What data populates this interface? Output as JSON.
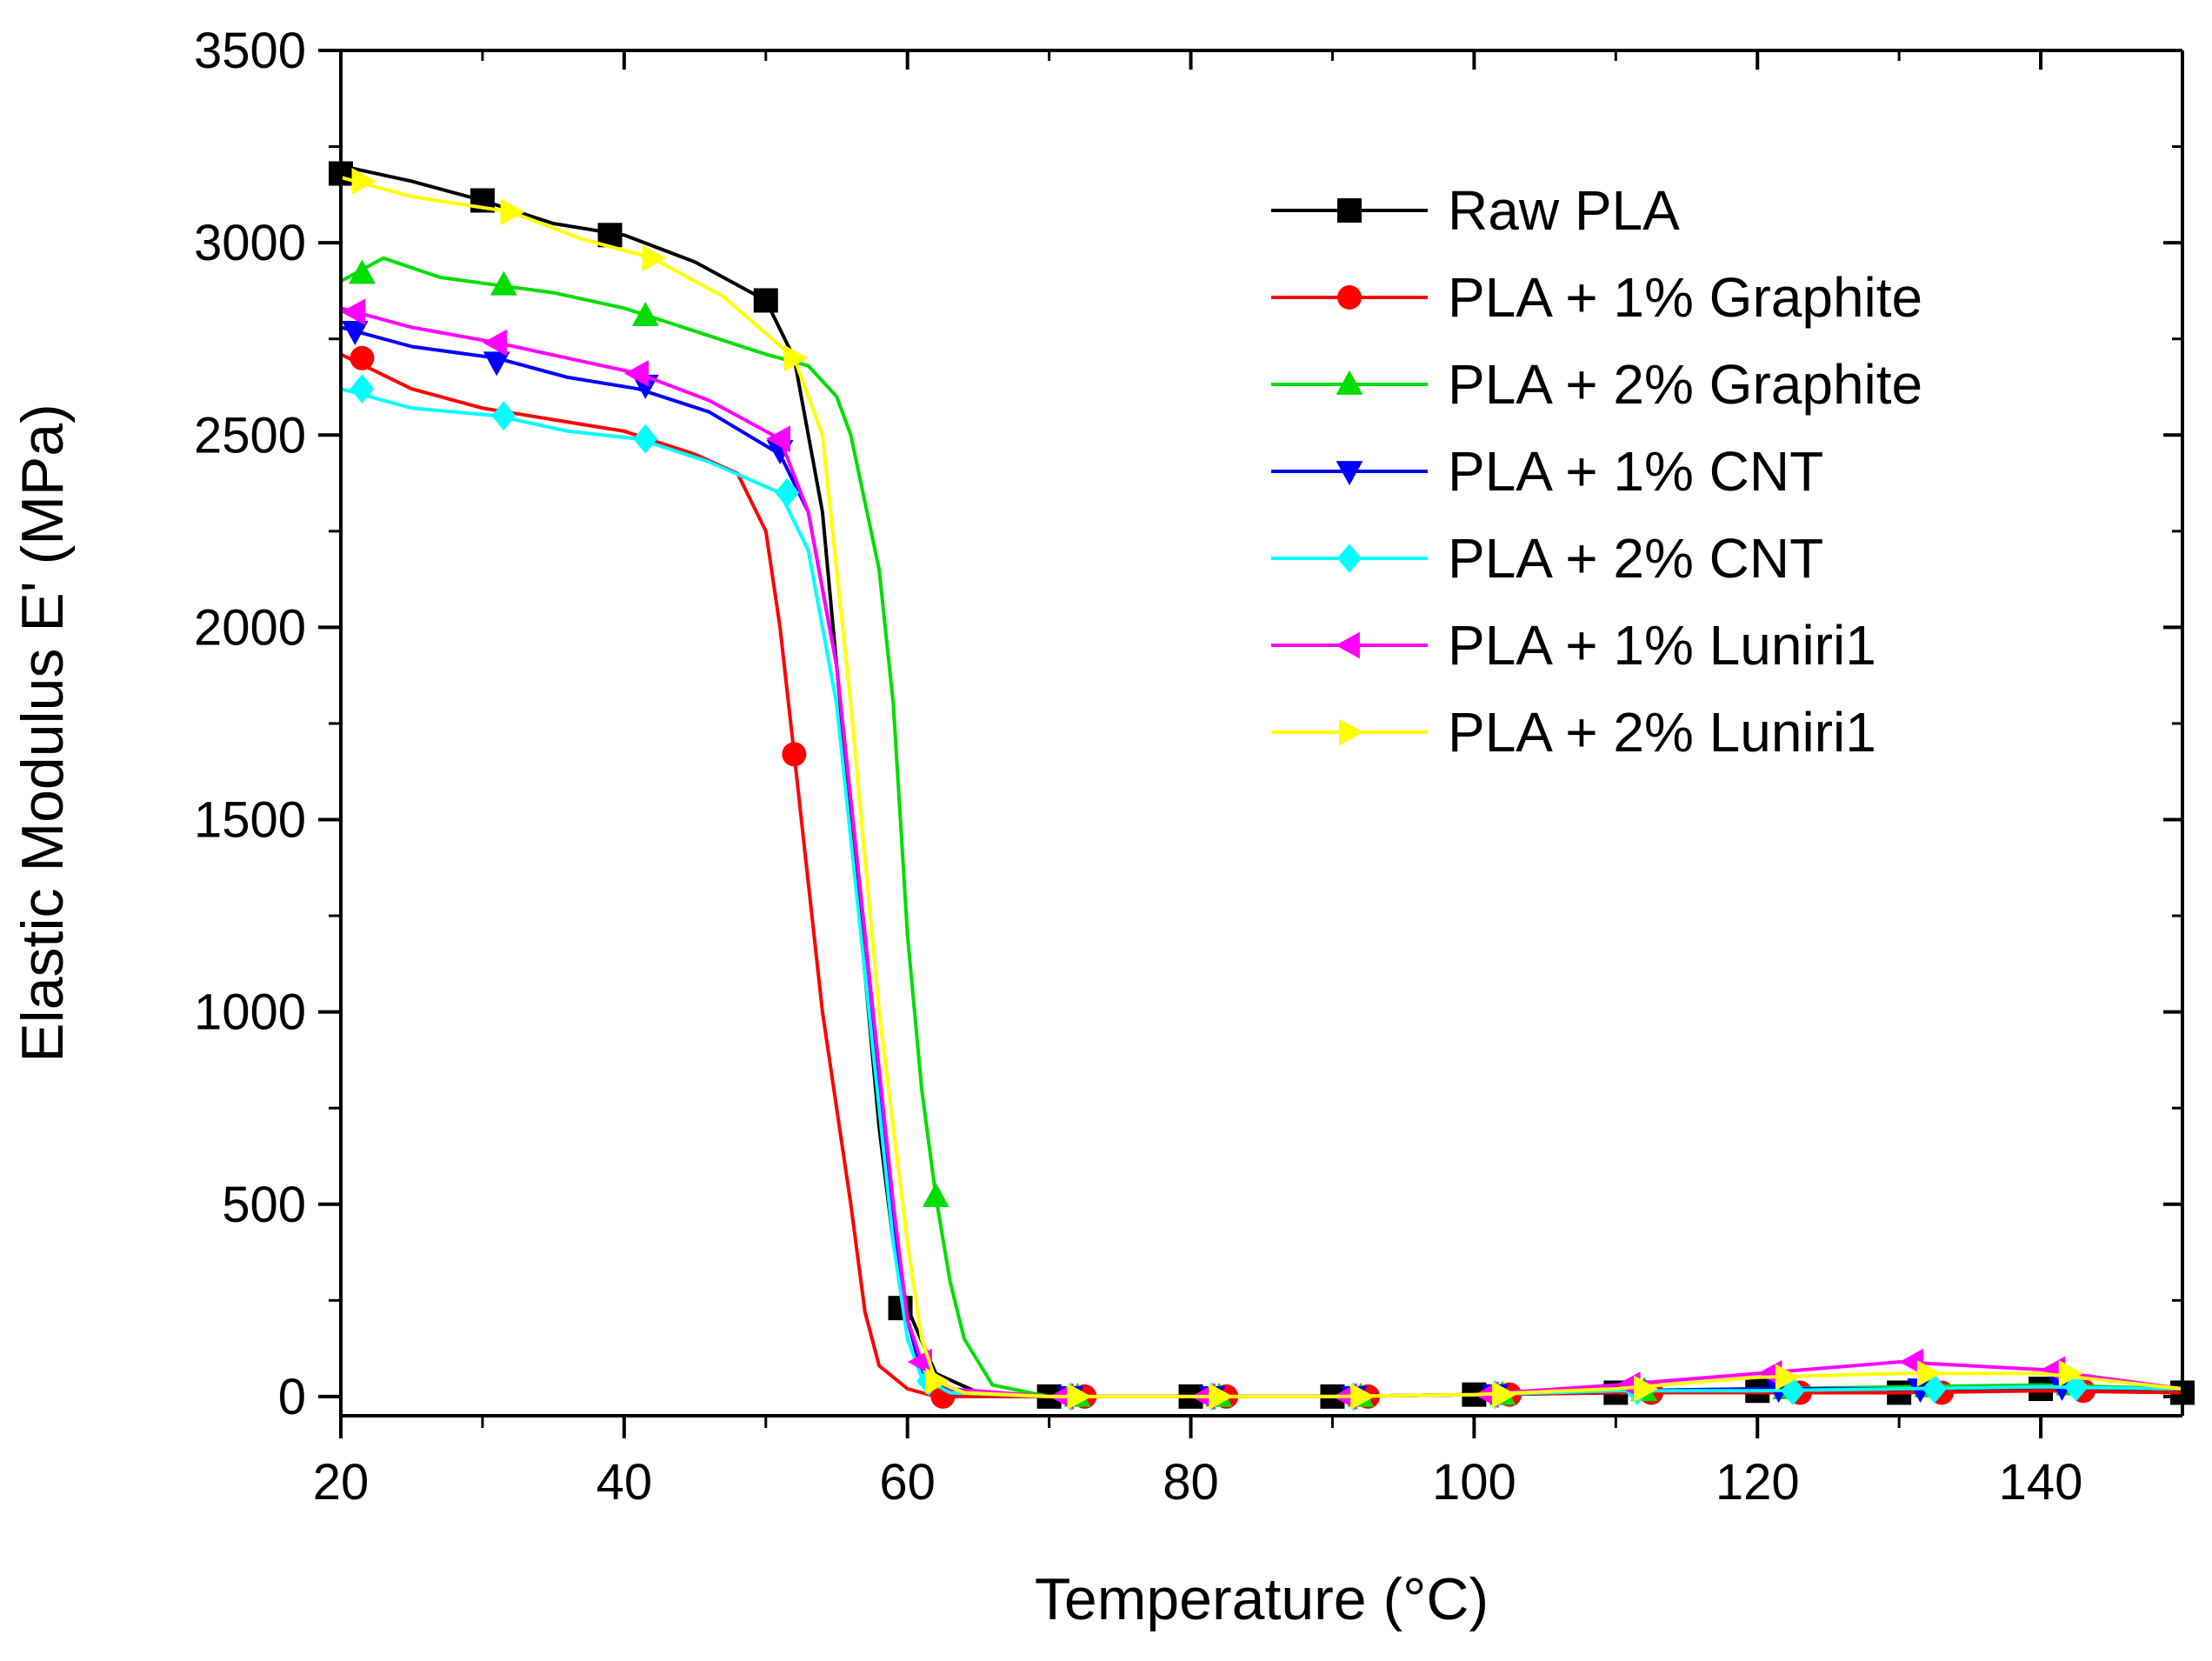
{
  "chart_data": {
    "type": "line",
    "title": "",
    "xlabel": "Temperature (°C)",
    "ylabel": "Elastic Modulus E' (MPa)",
    "xlim": [
      20,
      150
    ],
    "ylim": [
      -50,
      3500
    ],
    "xticks": [
      20,
      40,
      60,
      80,
      100,
      120,
      140
    ],
    "yticks": [
      0,
      500,
      1000,
      1500,
      2000,
      2500,
      3000,
      3500
    ],
    "grid": false,
    "legend_position": "top-right",
    "series": [
      {
        "name": "Raw PLA",
        "color": "#000000",
        "marker": "square",
        "line": [
          [
            20,
            3200
          ],
          [
            25,
            3160
          ],
          [
            30,
            3110
          ],
          [
            35,
            3050
          ],
          [
            40,
            3020
          ],
          [
            45,
            2950
          ],
          [
            50,
            2850
          ],
          [
            52,
            2700
          ],
          [
            54,
            2300
          ],
          [
            56,
            1500
          ],
          [
            58,
            700
          ],
          [
            59,
            400
          ],
          [
            60,
            230
          ],
          [
            62,
            60
          ],
          [
            65,
            10
          ],
          [
            70,
            0
          ],
          [
            80,
            0
          ],
          [
            90,
            0
          ],
          [
            100,
            5
          ],
          [
            110,
            10
          ],
          [
            120,
            15
          ],
          [
            130,
            10
          ],
          [
            140,
            20
          ],
          [
            150,
            10
          ]
        ],
        "markers": [
          [
            20,
            3180
          ],
          [
            30,
            3110
          ],
          [
            39,
            3020
          ],
          [
            50,
            2850
          ],
          [
            59.5,
            230
          ],
          [
            70,
            0
          ],
          [
            80,
            0
          ],
          [
            90,
            0
          ],
          [
            100,
            5
          ],
          [
            110,
            10
          ],
          [
            120,
            15
          ],
          [
            130,
            10
          ],
          [
            140,
            20
          ],
          [
            150,
            10
          ]
        ]
      },
      {
        "name": "PLA + 1% Graphite",
        "color": "#ff0000",
        "marker": "circle",
        "line": [
          [
            20,
            2710
          ],
          [
            25,
            2620
          ],
          [
            30,
            2570
          ],
          [
            35,
            2540
          ],
          [
            40,
            2510
          ],
          [
            45,
            2450
          ],
          [
            48,
            2400
          ],
          [
            50,
            2250
          ],
          [
            51,
            2000
          ],
          [
            52,
            1670
          ],
          [
            54,
            1000
          ],
          [
            56,
            500
          ],
          [
            57,
            220
          ],
          [
            58,
            80
          ],
          [
            60,
            20
          ],
          [
            62,
            0
          ],
          [
            70,
            0
          ],
          [
            80,
            0
          ],
          [
            90,
            0
          ],
          [
            100,
            5
          ],
          [
            110,
            10
          ],
          [
            120,
            10
          ],
          [
            130,
            10
          ],
          [
            140,
            15
          ],
          [
            150,
            10
          ]
        ],
        "markers": [
          [
            21.5,
            2700
          ],
          [
            52,
            1670
          ],
          [
            62.5,
            0
          ],
          [
            72.5,
            0
          ],
          [
            82.5,
            0
          ],
          [
            92.5,
            0
          ],
          [
            102.5,
            5
          ],
          [
            112.5,
            10
          ],
          [
            123,
            10
          ],
          [
            133,
            10
          ],
          [
            143,
            15
          ]
        ]
      },
      {
        "name": "PLA + 2% Graphite",
        "color": "#00dd00",
        "marker": "triangle-up",
        "line": [
          [
            20,
            2900
          ],
          [
            23,
            2960
          ],
          [
            27,
            2910
          ],
          [
            31,
            2890
          ],
          [
            35,
            2870
          ],
          [
            40,
            2830
          ],
          [
            45,
            2770
          ],
          [
            50,
            2710
          ],
          [
            53,
            2680
          ],
          [
            55,
            2600
          ],
          [
            56,
            2500
          ],
          [
            58,
            2150
          ],
          [
            59,
            1800
          ],
          [
            60,
            1200
          ],
          [
            61,
            800
          ],
          [
            62,
            520
          ],
          [
            63,
            300
          ],
          [
            64,
            150
          ],
          [
            66,
            30
          ],
          [
            70,
            0
          ],
          [
            80,
            0
          ],
          [
            90,
            0
          ],
          [
            100,
            5
          ],
          [
            110,
            15
          ],
          [
            120,
            20
          ],
          [
            130,
            25
          ],
          [
            140,
            30
          ],
          [
            150,
            20
          ]
        ],
        "markers": [
          [
            21.5,
            2920
          ],
          [
            31.5,
            2890
          ],
          [
            41.5,
            2810
          ],
          [
            62,
            520
          ],
          [
            72,
            0
          ],
          [
            82,
            0
          ],
          [
            92,
            0
          ],
          [
            102,
            5
          ],
          [
            112,
            15
          ],
          [
            122,
            20
          ],
          [
            132,
            25
          ],
          [
            142,
            30
          ]
        ]
      },
      {
        "name": "PLA + 1% CNT",
        "color": "#0000ff",
        "marker": "triangle-down",
        "line": [
          [
            20,
            2780
          ],
          [
            25,
            2730
          ],
          [
            31,
            2700
          ],
          [
            36,
            2650
          ],
          [
            41,
            2620
          ],
          [
            46,
            2560
          ],
          [
            51,
            2450
          ],
          [
            53,
            2300
          ],
          [
            55,
            1900
          ],
          [
            57,
            1200
          ],
          [
            59,
            450
          ],
          [
            60,
            200
          ],
          [
            61,
            60
          ],
          [
            63,
            10
          ],
          [
            70,
            0
          ],
          [
            80,
            0
          ],
          [
            90,
            0
          ],
          [
            100,
            5
          ],
          [
            110,
            15
          ],
          [
            120,
            20
          ],
          [
            130,
            20
          ],
          [
            140,
            25
          ],
          [
            150,
            20
          ]
        ],
        "markers": [
          [
            21,
            2770
          ],
          [
            31,
            2690
          ],
          [
            41.5,
            2630
          ],
          [
            51,
            2460
          ],
          [
            71.5,
            0
          ],
          [
            81.5,
            0
          ],
          [
            91.5,
            0
          ],
          [
            101.5,
            5
          ],
          [
            111.5,
            15
          ],
          [
            121.5,
            20
          ],
          [
            131.5,
            20
          ],
          [
            141.5,
            25
          ]
        ]
      },
      {
        "name": "PLA + 2% CNT",
        "color": "#00ffff",
        "marker": "diamond",
        "line": [
          [
            20,
            2620
          ],
          [
            25,
            2570
          ],
          [
            31,
            2550
          ],
          [
            36,
            2510
          ],
          [
            41,
            2490
          ],
          [
            46,
            2430
          ],
          [
            51,
            2350
          ],
          [
            53,
            2200
          ],
          [
            55,
            1800
          ],
          [
            57,
            1100
          ],
          [
            59,
            400
          ],
          [
            60,
            150
          ],
          [
            61,
            50
          ],
          [
            63,
            10
          ],
          [
            70,
            0
          ],
          [
            80,
            0
          ],
          [
            90,
            0
          ],
          [
            100,
            5
          ],
          [
            110,
            15
          ],
          [
            120,
            15
          ],
          [
            130,
            20
          ],
          [
            140,
            25
          ],
          [
            150,
            20
          ]
        ],
        "markers": [
          [
            21.5,
            2620
          ],
          [
            31.5,
            2550
          ],
          [
            41.5,
            2490
          ],
          [
            51.5,
            2350
          ],
          [
            61.5,
            40
          ],
          [
            71.5,
            0
          ],
          [
            81.5,
            0
          ],
          [
            91.5,
            0
          ],
          [
            101.5,
            5
          ],
          [
            111.5,
            15
          ],
          [
            122.5,
            15
          ],
          [
            132.5,
            20
          ],
          [
            142.5,
            25
          ]
        ]
      },
      {
        "name": "PLA + 1% Luniri1",
        "color": "#ff00ff",
        "marker": "triangle-left",
        "line": [
          [
            20,
            2830
          ],
          [
            25,
            2780
          ],
          [
            31,
            2740
          ],
          [
            36,
            2700
          ],
          [
            41,
            2660
          ],
          [
            46,
            2590
          ],
          [
            51,
            2490
          ],
          [
            53,
            2300
          ],
          [
            55,
            1900
          ],
          [
            57,
            1200
          ],
          [
            59,
            500
          ],
          [
            60,
            200
          ],
          [
            61,
            90
          ],
          [
            63,
            20
          ],
          [
            70,
            0
          ],
          [
            80,
            0
          ],
          [
            90,
            0
          ],
          [
            100,
            5
          ],
          [
            110,
            30
          ],
          [
            120,
            60
          ],
          [
            130,
            90
          ],
          [
            140,
            70
          ],
          [
            150,
            20
          ]
        ],
        "markers": [
          [
            21,
            2820
          ],
          [
            31,
            2740
          ],
          [
            41,
            2660
          ],
          [
            51,
            2490
          ],
          [
            61,
            90
          ],
          [
            71,
            0
          ],
          [
            81,
            0
          ],
          [
            91,
            0
          ],
          [
            101,
            5
          ],
          [
            111,
            30
          ],
          [
            121,
            60
          ],
          [
            131,
            90
          ],
          [
            141,
            70
          ]
        ]
      },
      {
        "name": "PLA + 2% Luniri1",
        "color": "#ffff00",
        "marker": "triangle-right",
        "line": [
          [
            20,
            3170
          ],
          [
            25,
            3120
          ],
          [
            32,
            3080
          ],
          [
            37,
            3010
          ],
          [
            42,
            2960
          ],
          [
            47,
            2860
          ],
          [
            52,
            2700
          ],
          [
            54,
            2500
          ],
          [
            56,
            1800
          ],
          [
            58,
            1000
          ],
          [
            60,
            400
          ],
          [
            61,
            150
          ],
          [
            62,
            40
          ],
          [
            64,
            10
          ],
          [
            70,
            0
          ],
          [
            80,
            0
          ],
          [
            90,
            0
          ],
          [
            100,
            5
          ],
          [
            110,
            20
          ],
          [
            120,
            50
          ],
          [
            130,
            60
          ],
          [
            140,
            60
          ],
          [
            150,
            20
          ]
        ],
        "markers": [
          [
            21.5,
            3160
          ],
          [
            32,
            3080
          ],
          [
            42,
            2960
          ],
          [
            52,
            2700
          ],
          [
            62,
            40
          ],
          [
            72,
            0
          ],
          [
            82,
            0
          ],
          [
            92,
            0
          ],
          [
            102,
            5
          ],
          [
            112,
            20
          ],
          [
            122,
            50
          ],
          [
            132,
            60
          ],
          [
            142,
            60
          ]
        ]
      }
    ]
  }
}
